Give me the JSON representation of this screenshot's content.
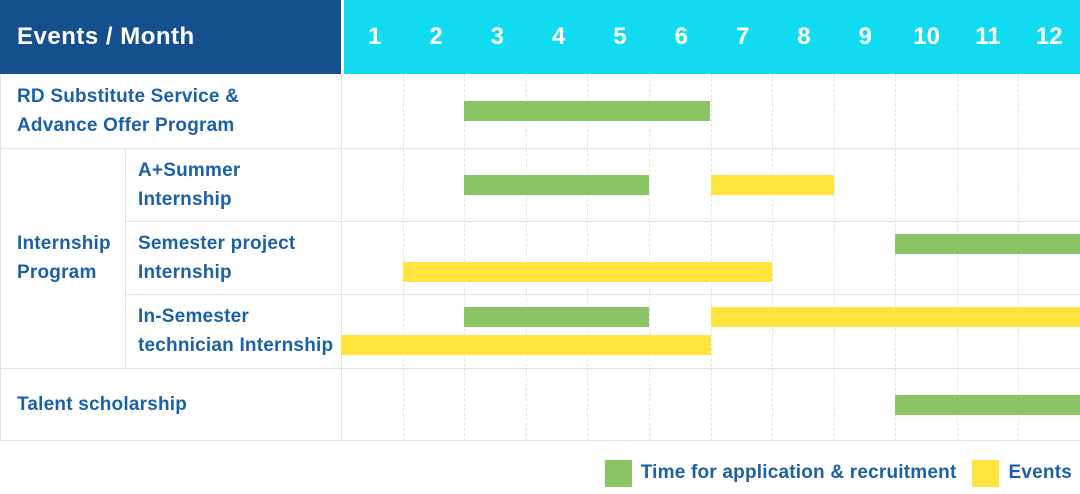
{
  "header": {
    "title": "Events / Month",
    "months": [
      "1",
      "2",
      "3",
      "4",
      "5",
      "6",
      "7",
      "8",
      "9",
      "10",
      "11",
      "12"
    ]
  },
  "group": {
    "label_lines": [
      "Internship",
      "Program"
    ]
  },
  "rows": [
    {
      "label_lines": [
        "RD Substitute Service &",
        "Advance Offer Program"
      ],
      "in_group": false,
      "bars": [
        {
          "type": "recruitment",
          "start_month": 3,
          "end_month": 6,
          "lane": "single"
        }
      ]
    },
    {
      "label_lines": [
        "A+Summer",
        "Internship"
      ],
      "in_group": true,
      "bars": [
        {
          "type": "recruitment",
          "start_month": 3,
          "end_month": 5,
          "lane": "single"
        },
        {
          "type": "event",
          "start_month": 7,
          "end_month": 8,
          "lane": "single"
        }
      ]
    },
    {
      "label_lines": [
        "Semester project",
        "Internship"
      ],
      "in_group": true,
      "bars": [
        {
          "type": "recruitment",
          "start_month": 10,
          "end_month": 12,
          "lane": "top"
        },
        {
          "type": "event",
          "start_month": 2,
          "end_month": 7,
          "lane": "bottom"
        }
      ]
    },
    {
      "label_lines": [
        "In-Semester",
        "technician Internship"
      ],
      "in_group": true,
      "bars": [
        {
          "type": "recruitment",
          "start_month": 3,
          "end_month": 5,
          "lane": "top"
        },
        {
          "type": "event",
          "start_month": 7,
          "end_month": 12,
          "lane": "top"
        },
        {
          "type": "event",
          "start_month": 1,
          "end_month": 6,
          "lane": "bottom"
        }
      ]
    },
    {
      "label_lines": [
        "Talent scholarship"
      ],
      "in_group": false,
      "bars": [
        {
          "type": "recruitment",
          "start_month": 10,
          "end_month": 12,
          "lane": "single"
        }
      ]
    }
  ],
  "legend": [
    {
      "label": "Time for application & recruitment",
      "type": "recruitment"
    },
    {
      "label": "Events",
      "type": "event"
    }
  ],
  "colors": {
    "header_bg": "#15508e",
    "months_bg": "#10dbf0",
    "recruitment": "#8bc464",
    "event": "#ffe53d",
    "label_text": "#1b61a5",
    "grid_line": "#e3e3e3"
  },
  "chart_data": {
    "type": "bar",
    "subtype": "gantt",
    "title": "Events / Month",
    "x_axis": {
      "label": "Month",
      "ticks": [
        1,
        2,
        3,
        4,
        5,
        6,
        7,
        8,
        9,
        10,
        11,
        12
      ],
      "range": [
        1,
        12
      ]
    },
    "grid": true,
    "legend_position": "bottom-right",
    "series_names": [
      "Time for application & recruitment",
      "Events"
    ],
    "rows": [
      {
        "group": null,
        "label": "RD Substitute Service & Advance Offer Program",
        "spans": [
          {
            "series": "Time for application & recruitment",
            "start_month": 3,
            "end_month": 6
          }
        ]
      },
      {
        "group": "Internship Program",
        "label": "A+Summer Internship",
        "spans": [
          {
            "series": "Time for application & recruitment",
            "start_month": 3,
            "end_month": 5
          },
          {
            "series": "Events",
            "start_month": 7,
            "end_month": 8
          }
        ]
      },
      {
        "group": "Internship Program",
        "label": "Semester project Internship",
        "spans": [
          {
            "series": "Time for application & recruitment",
            "start_month": 10,
            "end_month": 12
          },
          {
            "series": "Events",
            "start_month": 2,
            "end_month": 7
          }
        ]
      },
      {
        "group": "Internship Program",
        "label": "In-Semester technician Internship",
        "spans": [
          {
            "series": "Time for application & recruitment",
            "start_month": 3,
            "end_month": 5
          },
          {
            "series": "Events",
            "start_month": 7,
            "end_month": 12
          },
          {
            "series": "Events",
            "start_month": 1,
            "end_month": 6
          }
        ]
      },
      {
        "group": null,
        "label": "Talent scholarship",
        "spans": [
          {
            "series": "Time for application & recruitment",
            "start_month": 10,
            "end_month": 12
          }
        ]
      }
    ]
  }
}
